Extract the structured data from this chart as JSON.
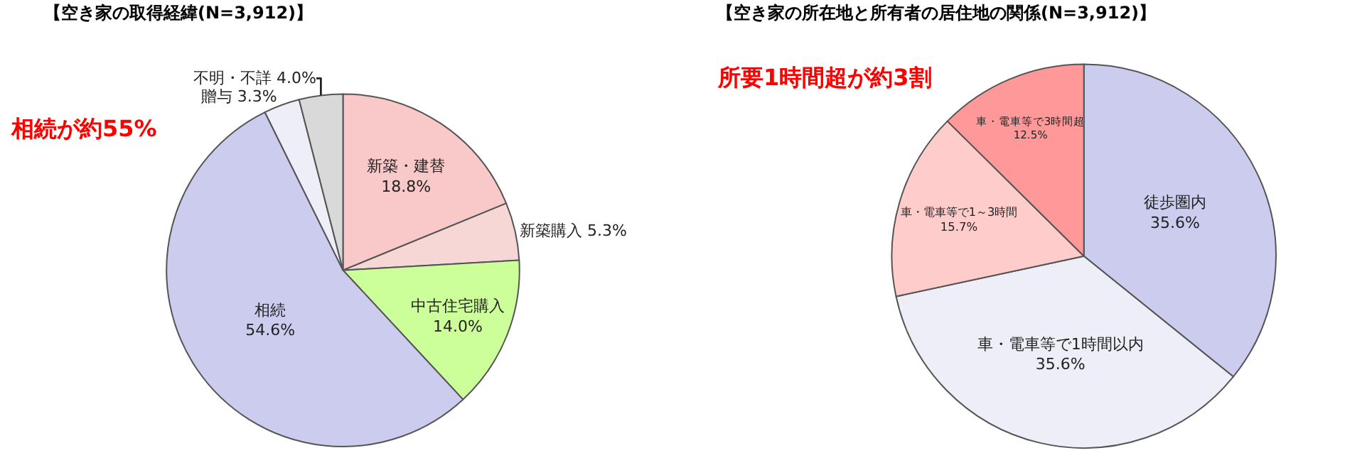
{
  "chart_data": [
    {
      "type": "pie",
      "title": "【空き家の取得経緯(N=3,912)】",
      "categories": [
        "新築・建替",
        "新築購入",
        "中古住宅購入",
        "相続",
        "贈与",
        "不明・不詳"
      ],
      "values": [
        18.8,
        5.3,
        14.0,
        54.6,
        3.3,
        4.0
      ],
      "value_labels": [
        "18.8%",
        "5.3%",
        "14.0%",
        "54.6%",
        "3.3%",
        "4.0%"
      ],
      "colors": [
        "#f9c8c8",
        "#f7d6d6",
        "#ccff99",
        "#ccccee",
        "#eeeef8",
        "#d9d9d9"
      ],
      "annotations": [
        "相続が約55%"
      ]
    },
    {
      "type": "pie",
      "title": "【空き家の所在地と所有者の居住地の関係(N=3,912)】",
      "categories": [
        "徒歩圏内",
        "車・電車等で1時間以内",
        "車・電車等で1～3時間",
        "車・電車等で3時間超"
      ],
      "values": [
        35.6,
        35.6,
        15.7,
        12.5
      ],
      "value_labels": [
        "35.6%",
        "35.6%",
        "15.7%",
        "12.5%"
      ],
      "colors": [
        "#ccccee",
        "#eeeef8",
        "#ffcccc",
        "#ff9999"
      ],
      "annotations": [
        "所要1時間超が約3割"
      ]
    }
  ]
}
